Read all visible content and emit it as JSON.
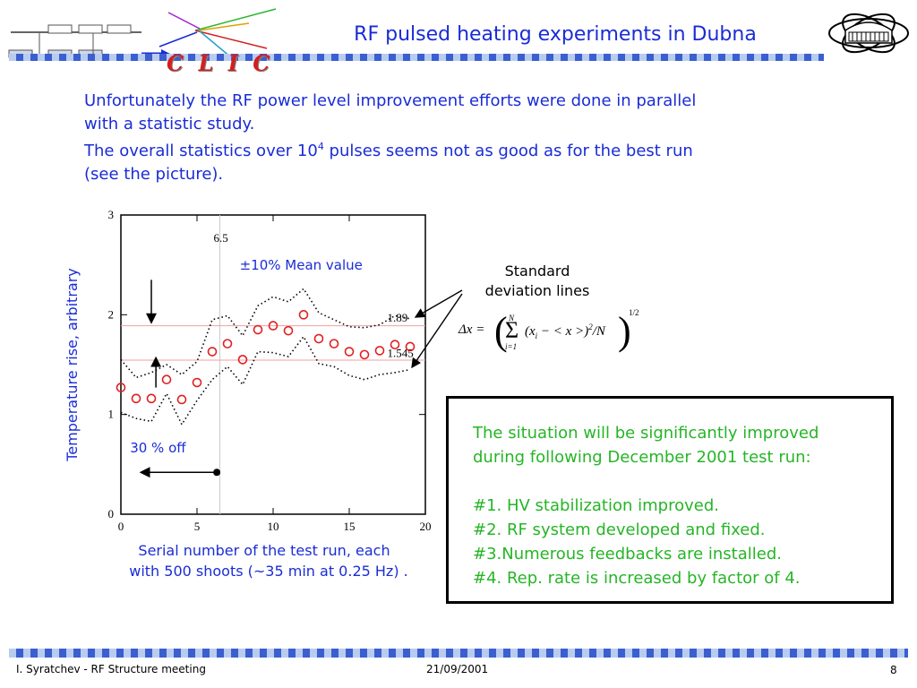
{
  "header": {
    "title": "RF pulsed heating experiments in Dubna",
    "logo_text": "C L I C"
  },
  "intro": {
    "line1": "Unfortunately the RF power level improvement efforts were done in parallel",
    "line2": "with a statistic study.",
    "line3_pre": "The overall statistics over 10",
    "line3_sup": "4",
    "line3_post": " pulses seems not as good as for the best run",
    "line4": "(see the picture)."
  },
  "chart_data": {
    "type": "scatter",
    "ylabel": "Temperature rise, arbitrary",
    "xlabel_line1": "Serial number of the test run, each",
    "xlabel_line2": "with 500 shoots (~35 min at 0.25 Hz) .",
    "xlim": [
      0,
      20
    ],
    "ylim": [
      0,
      3
    ],
    "x_ticks": [
      0,
      5,
      10,
      15,
      20
    ],
    "y_ticks": [
      0,
      1,
      2,
      3
    ],
    "points": [
      {
        "x": 0,
        "y": 1.27
      },
      {
        "x": 1,
        "y": 1.16
      },
      {
        "x": 2,
        "y": 1.16
      },
      {
        "x": 3,
        "y": 1.35
      },
      {
        "x": 4,
        "y": 1.15
      },
      {
        "x": 5,
        "y": 1.32
      },
      {
        "x": 6,
        "y": 1.63
      },
      {
        "x": 7,
        "y": 1.71
      },
      {
        "x": 8,
        "y": 1.55
      },
      {
        "x": 9,
        "y": 1.85
      },
      {
        "x": 10,
        "y": 1.89
      },
      {
        "x": 11,
        "y": 1.84
      },
      {
        "x": 12,
        "y": 2.0
      },
      {
        "x": 13,
        "y": 1.76
      },
      {
        "x": 14,
        "y": 1.71
      },
      {
        "x": 15,
        "y": 1.63
      },
      {
        "x": 16,
        "y": 1.6
      },
      {
        "x": 17,
        "y": 1.64
      },
      {
        "x": 18,
        "y": 1.7
      },
      {
        "x": 19,
        "y": 1.68
      }
    ],
    "upper_band": [
      1.55,
      1.37,
      1.42,
      1.5,
      1.4,
      1.53,
      1.95,
      1.99,
      1.79,
      2.09,
      2.18,
      2.13,
      2.26,
      2.02,
      1.95,
      1.88,
      1.87,
      1.9,
      1.99,
      1.96
    ],
    "lower_band": [
      1.02,
      0.96,
      0.93,
      1.21,
      0.9,
      1.14,
      1.35,
      1.48,
      1.3,
      1.63,
      1.62,
      1.58,
      1.78,
      1.51,
      1.48,
      1.39,
      1.35,
      1.4,
      1.42,
      1.45
    ],
    "vline_x": 6.5,
    "vline_label": "6.5",
    "hline_upper": 1.89,
    "hline_upper_label": "1.89",
    "hline_lower": 1.545,
    "hline_lower_label": "1.545",
    "mean_label": "±10% Mean value",
    "off_label": "30 % off"
  },
  "std_dev_label_line1": "Standard",
  "std_dev_label_line2": "deviation lines",
  "formula": {
    "lhs": "Δx =",
    "sum_top": "N",
    "sum_bottom": "i=1",
    "body": "(x",
    "sub_i": "i",
    "body2": " − < x >)",
    "sq": "2",
    "over_n": "/N",
    "power": "1/2"
  },
  "callout": {
    "line1": "The situation will be significantly improved",
    "line2": "during following December 2001 test run:",
    "item1": "#1. HV stabilization improved.",
    "item2": "#2. RF system developed and fixed.",
    "item3": "#3.Numerous feedbacks are installed.",
    "item4": "#4. Rep. rate is increased by factor of 4."
  },
  "footer": {
    "left": "I. Syratchev - RF Structure meeting",
    "date": "21/09/2001",
    "page": "8"
  },
  "colors": {
    "title": "#1a2cd6",
    "callout_text": "#26b526",
    "points": "#e02020",
    "ref_lines": "#f0a0a0"
  }
}
